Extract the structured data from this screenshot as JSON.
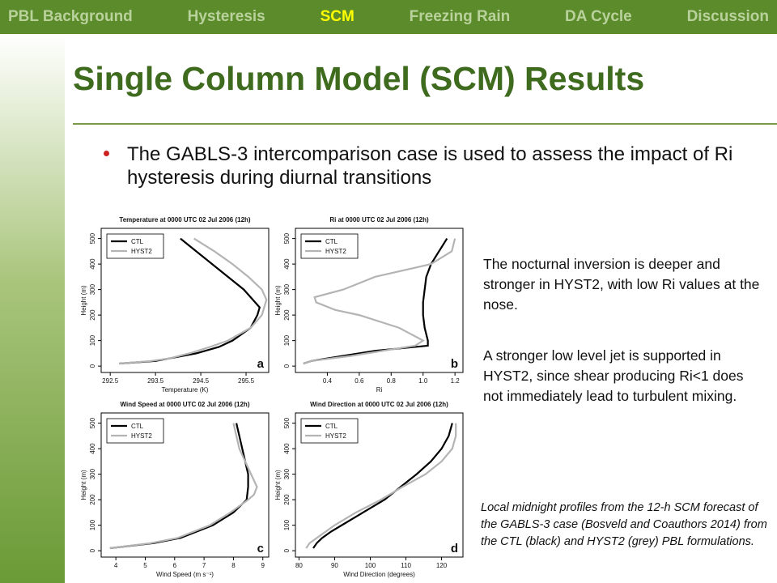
{
  "nav": {
    "items": [
      "PBL Background",
      "Hysteresis",
      "SCM",
      "Freezing Rain",
      "DA Cycle",
      "Discussion"
    ],
    "active": 2
  },
  "title": "Single Column Model (SCM) Results",
  "bullet": "The GABLS-3 intercomparison case is used to assess the impact of Ri hysteresis during diurnal transitions",
  "notes": [
    "The nocturnal inversion is deeper and stronger in HYST2, with low Ri values at the nose.",
    "A stronger low level jet is supported in HYST2, since shear producing Ri<1 does not immediately lead to turbulent mixing."
  ],
  "caption": "Local midnight profiles from the 12-h SCM forecast of the GABLS-3 case (Bosveld and Coauthors 2014) from the CTL (black) and HYST2 (grey) PBL formulations.",
  "charts": [
    {
      "type": "line",
      "title": "Temperature at 0000 UTC 02 Jul 2006 (12h)",
      "xlabel": "Temperature (K)",
      "ylabel": "Height (m)",
      "panel": "a",
      "legend": "upper left",
      "xlim": [
        292.3,
        296.0
      ],
      "xticks": [
        292.5,
        293.5,
        294.5,
        295.5
      ],
      "ylim": [
        -25,
        540
      ],
      "yticks": [
        0,
        100,
        200,
        300,
        400,
        500
      ],
      "series": [
        {
          "name": "CTL",
          "color": "#000000",
          "values": [
            292.7,
            293.5,
            293.8,
            294.4,
            294.9,
            295.2,
            295.6,
            295.75,
            295.8,
            295.45,
            295.1,
            294.75,
            294.4,
            294.05
          ],
          "heights": [
            10,
            20,
            30,
            50,
            75,
            100,
            150,
            200,
            230,
            300,
            350,
            400,
            450,
            500
          ]
        },
        {
          "name": "HYST2",
          "color": "#b4b4b4",
          "values": [
            292.7,
            293.4,
            293.8,
            294.25,
            294.7,
            295.1,
            295.6,
            295.85,
            295.95,
            295.85,
            295.55,
            295.2,
            294.8,
            294.35
          ],
          "heights": [
            10,
            20,
            30,
            50,
            75,
            100,
            150,
            200,
            260,
            300,
            350,
            400,
            450,
            500
          ]
        }
      ]
    },
    {
      "type": "line",
      "title": "Ri at 0000 UTC 02 Jul 2006 (12h)",
      "xlabel": "Ri",
      "ylabel": "Height (m)",
      "panel": "b",
      "legend": "upper left",
      "xlim": [
        0.2,
        1.25
      ],
      "xticks": [
        0.4,
        0.6,
        0.8,
        {
          "value": 1,
          "label": "1.0"
        },
        1.2
      ],
      "ylim": [
        -25,
        540
      ],
      "yticks": [
        0,
        100,
        200,
        300,
        400,
        500
      ],
      "series": [
        {
          "name": "CTL",
          "color": "#000000",
          "values": [
            0.25,
            0.3,
            0.5,
            0.7,
            1.03,
            1.03,
            1.01,
            1.0,
            1.0,
            1.01,
            1.02,
            1.05,
            1.1,
            1.15
          ],
          "heights": [
            10,
            20,
            40,
            60,
            80,
            100,
            150,
            200,
            250,
            300,
            350,
            400,
            450,
            500
          ]
        },
        {
          "name": "HYST2",
          "color": "#b4b4b4",
          "values": [
            0.25,
            0.3,
            0.55,
            0.75,
            0.95,
            1.0,
            0.85,
            0.6,
            0.45,
            0.33,
            0.32,
            0.5,
            0.7,
            1.05,
            1.18,
            1.2
          ],
          "heights": [
            10,
            20,
            40,
            60,
            80,
            100,
            150,
            200,
            220,
            250,
            270,
            300,
            350,
            400,
            450,
            500
          ]
        }
      ]
    },
    {
      "type": "line",
      "title": "Wind Speed at 0000 UTC 02 Jul 2006 (12h)",
      "xlabel": "Wind Speed (m s⁻¹)",
      "ylabel": "Height (m)",
      "panel": "c",
      "legend": "upper left",
      "xlim": [
        3.5,
        9.2
      ],
      "xticks": [
        4,
        5,
        6,
        7,
        8,
        9
      ],
      "ylim": [
        -25,
        540
      ],
      "yticks": [
        0,
        100,
        200,
        300,
        400,
        500
      ],
      "series": [
        {
          "name": "CTL",
          "color": "#000000",
          "values": [
            3.8,
            5.3,
            6.2,
            7.3,
            8.0,
            8.45,
            8.5,
            8.5,
            8.3,
            8.1
          ],
          "heights": [
            10,
            30,
            50,
            100,
            150,
            200,
            250,
            300,
            400,
            500
          ]
        },
        {
          "name": "HYST2",
          "color": "#b4b4b4",
          "values": [
            3.8,
            5.2,
            6.1,
            7.2,
            7.9,
            8.5,
            8.7,
            8.8,
            8.6,
            8.2,
            8.0
          ],
          "heights": [
            10,
            30,
            50,
            100,
            150,
            200,
            220,
            250,
            300,
            400,
            500
          ]
        }
      ]
    },
    {
      "type": "line",
      "title": "Wind Direction at 0000 UTC 02 Jul 2006 (12h)",
      "xlabel": "Wind Direction (degrees)",
      "ylabel": "Height (m)",
      "panel": "d",
      "legend": "upper left",
      "xlim": [
        79,
        126
      ],
      "xticks": [
        80,
        90,
        100,
        110,
        120
      ],
      "ylim": [
        -25,
        540
      ],
      "yticks": [
        0,
        100,
        200,
        300,
        400,
        500
      ],
      "series": [
        {
          "name": "CTL",
          "color": "#000000",
          "values": [
            84,
            85,
            86.5,
            89,
            92,
            98,
            104,
            108.5,
            113,
            117,
            120,
            122,
            123
          ],
          "heights": [
            10,
            30,
            50,
            75,
            100,
            150,
            200,
            250,
            300,
            350,
            400,
            450,
            500
          ]
        },
        {
          "name": "HYST2",
          "color": "#b4b4b4",
          "values": [
            82,
            83,
            85,
            90,
            96,
            103,
            109,
            115.5,
            120,
            123,
            124,
            124
          ],
          "heights": [
            10,
            30,
            50,
            100,
            150,
            200,
            250,
            300,
            350,
            400,
            450,
            500
          ]
        }
      ]
    }
  ]
}
